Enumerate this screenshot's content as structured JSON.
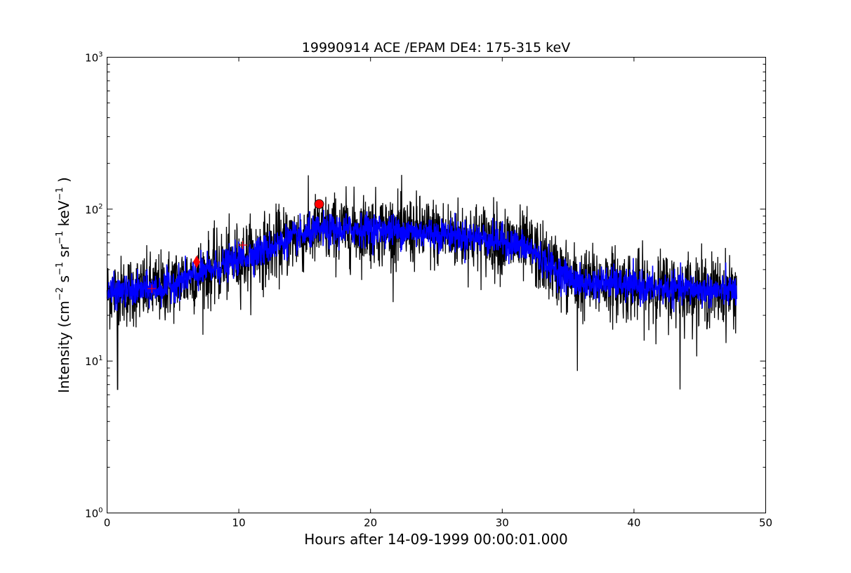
{
  "chart_data": {
    "type": "line",
    "title": "19990914 ACE /EPAM DE4: 175-315 keV",
    "xlabel": "Hours after 14-09-1999 00:00:01.000",
    "ylabel": {
      "prefix": "Intensity (cm",
      "exp1": "−2",
      "s": " s",
      "exp2": "−1",
      "sr": " sr",
      "exp3": "−1",
      "kev": " keV",
      "exp4": "−1",
      "suffix": " )"
    },
    "xlim": [
      0,
      50
    ],
    "ylim": [
      1,
      1000
    ],
    "yscale": "log",
    "grid": false,
    "x_ticks": [
      0,
      10,
      20,
      30,
      40,
      50
    ],
    "y_ticks": [
      {
        "value": 1,
        "base": "10",
        "exp": "0"
      },
      {
        "value": 10,
        "base": "10",
        "exp": "1"
      },
      {
        "value": 100,
        "base": "10",
        "exp": "2"
      },
      {
        "value": 1000,
        "base": "10",
        "exp": "3"
      }
    ],
    "profile": [
      [
        0,
        28
      ],
      [
        2,
        29
      ],
      [
        4,
        30
      ],
      [
        6,
        35
      ],
      [
        8,
        40
      ],
      [
        10,
        47
      ],
      [
        12,
        54
      ],
      [
        14,
        64
      ],
      [
        16,
        72
      ],
      [
        18,
        73
      ],
      [
        20,
        74
      ],
      [
        22,
        72
      ],
      [
        24,
        70
      ],
      [
        26,
        68
      ],
      [
        28,
        65
      ],
      [
        30,
        62
      ],
      [
        32,
        55
      ],
      [
        34,
        40
      ],
      [
        36,
        32
      ],
      [
        38,
        33
      ],
      [
        40,
        31
      ],
      [
        42,
        30
      ],
      [
        44,
        30
      ],
      [
        46,
        29
      ],
      [
        47.8,
        29
      ]
    ],
    "series": [
      {
        "color": "#000000",
        "x_end": 47.8,
        "noise_sigma": 0.27,
        "spike_min": [
          [
            0.8,
            6.5
          ],
          [
            43.5,
            6.5
          ],
          [
            35.7,
            8.6
          ]
        ]
      },
      {
        "color": "#0000ff",
        "x_end": 47.8,
        "noise_sigma": 0.12
      }
    ],
    "markers": [
      {
        "shape": "circle",
        "x": 16.1,
        "y": 108,
        "color": "#ff0000"
      },
      {
        "shape": "diamond",
        "x": 6.8,
        "y": 45,
        "color": "#ff0000"
      },
      {
        "shape": "plus",
        "x": 3.4,
        "y": 30,
        "color": "#ff0000"
      },
      {
        "shape": "plus",
        "x": 10.3,
        "y": 58,
        "color": "#ff0000"
      }
    ]
  }
}
